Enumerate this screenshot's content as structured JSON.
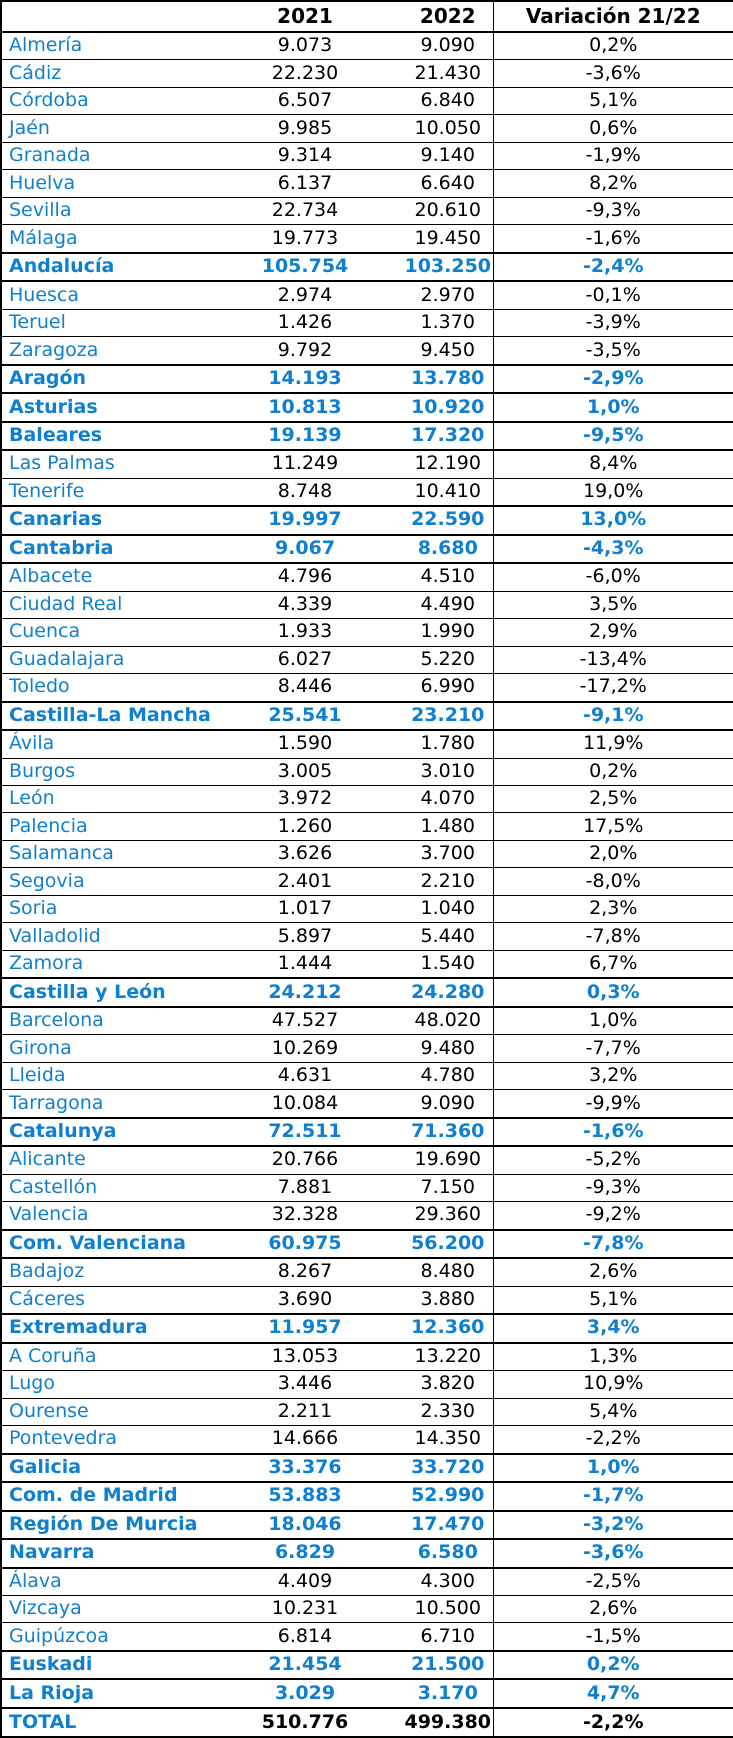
{
  "accent_color": "#0f7fd0",
  "border_color": "#000000",
  "header": {
    "name": "",
    "y2021": "2021",
    "y2022": "2022",
    "variation": "Variación 21/22"
  },
  "rows": [
    {
      "name": "Almería",
      "y2021": "9.073",
      "y2022": "9.090",
      "var": "0,2%",
      "type": "province"
    },
    {
      "name": "Cádiz",
      "y2021": "22.230",
      "y2022": "21.430",
      "var": "-3,6%",
      "type": "province"
    },
    {
      "name": "Córdoba",
      "y2021": "6.507",
      "y2022": "6.840",
      "var": "5,1%",
      "type": "province"
    },
    {
      "name": "Jaén",
      "y2021": "9.985",
      "y2022": "10.050",
      "var": "0,6%",
      "type": "province"
    },
    {
      "name": "Granada",
      "y2021": "9.314",
      "y2022": "9.140",
      "var": "-1,9%",
      "type": "province"
    },
    {
      "name": "Huelva",
      "y2021": "6.137",
      "y2022": "6.640",
      "var": "8,2%",
      "type": "province"
    },
    {
      "name": "Sevilla",
      "y2021": "22.734",
      "y2022": "20.610",
      "var": "-9,3%",
      "type": "province"
    },
    {
      "name": "Málaga",
      "y2021": "19.773",
      "y2022": "19.450",
      "var": "-1,6%",
      "type": "province"
    },
    {
      "name": "Andalucía",
      "y2021": "105.754",
      "y2022": "103.250",
      "var": "-2,4%",
      "type": "region"
    },
    {
      "name": "Huesca",
      "y2021": "2.974",
      "y2022": "2.970",
      "var": "-0,1%",
      "type": "province"
    },
    {
      "name": "Teruel",
      "y2021": "1.426",
      "y2022": "1.370",
      "var": "-3,9%",
      "type": "province"
    },
    {
      "name": "Zaragoza",
      "y2021": "9.792",
      "y2022": "9.450",
      "var": "-3,5%",
      "type": "province"
    },
    {
      "name": "Aragón",
      "y2021": "14.193",
      "y2022": "13.780",
      "var": "-2,9%",
      "type": "region"
    },
    {
      "name": "Asturias",
      "y2021": "10.813",
      "y2022": "10.920",
      "var": "1,0%",
      "type": "region"
    },
    {
      "name": "Baleares",
      "y2021": "19.139",
      "y2022": "17.320",
      "var": "-9,5%",
      "type": "region"
    },
    {
      "name": "Las Palmas",
      "y2021": "11.249",
      "y2022": "12.190",
      "var": "8,4%",
      "type": "province"
    },
    {
      "name": "Tenerife",
      "y2021": "8.748",
      "y2022": "10.410",
      "var": "19,0%",
      "type": "province"
    },
    {
      "name": "Canarias",
      "y2021": "19.997",
      "y2022": "22.590",
      "var": "13,0%",
      "type": "region"
    },
    {
      "name": "Cantabria",
      "y2021": "9.067",
      "y2022": "8.680",
      "var": "-4,3%",
      "type": "region"
    },
    {
      "name": "Albacete",
      "y2021": "4.796",
      "y2022": "4.510",
      "var": "-6,0%",
      "type": "province"
    },
    {
      "name": "Ciudad Real",
      "y2021": "4.339",
      "y2022": "4.490",
      "var": "3,5%",
      "type": "province"
    },
    {
      "name": "Cuenca",
      "y2021": "1.933",
      "y2022": "1.990",
      "var": "2,9%",
      "type": "province"
    },
    {
      "name": "Guadalajara",
      "y2021": "6.027",
      "y2022": "5.220",
      "var": "-13,4%",
      "type": "province"
    },
    {
      "name": "Toledo",
      "y2021": "8.446",
      "y2022": "6.990",
      "var": "-17,2%",
      "type": "province"
    },
    {
      "name": "Castilla-La Mancha",
      "y2021": "25.541",
      "y2022": "23.210",
      "var": "-9,1%",
      "type": "region"
    },
    {
      "name": "Ávila",
      "y2021": "1.590",
      "y2022": "1.780",
      "var": "11,9%",
      "type": "province"
    },
    {
      "name": "Burgos",
      "y2021": "3.005",
      "y2022": "3.010",
      "var": "0,2%",
      "type": "province"
    },
    {
      "name": "León",
      "y2021": "3.972",
      "y2022": "4.070",
      "var": "2,5%",
      "type": "province"
    },
    {
      "name": "Palencia",
      "y2021": "1.260",
      "y2022": "1.480",
      "var": "17,5%",
      "type": "province"
    },
    {
      "name": "Salamanca",
      "y2021": "3.626",
      "y2022": "3.700",
      "var": "2,0%",
      "type": "province"
    },
    {
      "name": "Segovia",
      "y2021": "2.401",
      "y2022": "2.210",
      "var": "-8,0%",
      "type": "province"
    },
    {
      "name": "Soria",
      "y2021": "1.017",
      "y2022": "1.040",
      "var": "2,3%",
      "type": "province"
    },
    {
      "name": "Valladolid",
      "y2021": "5.897",
      "y2022": "5.440",
      "var": "-7,8%",
      "type": "province"
    },
    {
      "name": "Zamora",
      "y2021": "1.444",
      "y2022": "1.540",
      "var": "6,7%",
      "type": "province"
    },
    {
      "name": "Castilla y León",
      "y2021": "24.212",
      "y2022": "24.280",
      "var": "0,3%",
      "type": "region"
    },
    {
      "name": "Barcelona",
      "y2021": "47.527",
      "y2022": "48.020",
      "var": "1,0%",
      "type": "province"
    },
    {
      "name": "Girona",
      "y2021": "10.269",
      "y2022": "9.480",
      "var": "-7,7%",
      "type": "province"
    },
    {
      "name": "Lleida",
      "y2021": "4.631",
      "y2022": "4.780",
      "var": "3,2%",
      "type": "province"
    },
    {
      "name": "Tarragona",
      "y2021": "10.084",
      "y2022": "9.090",
      "var": "-9,9%",
      "type": "province"
    },
    {
      "name": "Catalunya",
      "y2021": "72.511",
      "y2022": "71.360",
      "var": "-1,6%",
      "type": "region"
    },
    {
      "name": "Alicante",
      "y2021": "20.766",
      "y2022": "19.690",
      "var": "-5,2%",
      "type": "province"
    },
    {
      "name": "Castellón",
      "y2021": "7.881",
      "y2022": "7.150",
      "var": "-9,3%",
      "type": "province"
    },
    {
      "name": "Valencia",
      "y2021": "32.328",
      "y2022": "29.360",
      "var": "-9,2%",
      "type": "province"
    },
    {
      "name": "Com. Valenciana",
      "y2021": "60.975",
      "y2022": "56.200",
      "var": "-7,8%",
      "type": "region"
    },
    {
      "name": "Badajoz",
      "y2021": "8.267",
      "y2022": "8.480",
      "var": "2,6%",
      "type": "province"
    },
    {
      "name": "Cáceres",
      "y2021": "3.690",
      "y2022": "3.880",
      "var": "5,1%",
      "type": "province"
    },
    {
      "name": "Extremadura",
      "y2021": "11.957",
      "y2022": "12.360",
      "var": "3,4%",
      "type": "region"
    },
    {
      "name": "A Coruña",
      "y2021": "13.053",
      "y2022": "13.220",
      "var": "1,3%",
      "type": "province"
    },
    {
      "name": "Lugo",
      "y2021": "3.446",
      "y2022": "3.820",
      "var": "10,9%",
      "type": "province"
    },
    {
      "name": "Ourense",
      "y2021": "2.211",
      "y2022": "2.330",
      "var": "5,4%",
      "type": "province"
    },
    {
      "name": "Pontevedra",
      "y2021": "14.666",
      "y2022": "14.350",
      "var": "-2,2%",
      "type": "province"
    },
    {
      "name": "Galicia",
      "y2021": "33.376",
      "y2022": "33.720",
      "var": "1,0%",
      "type": "region"
    },
    {
      "name": "Com. de Madrid",
      "y2021": "53.883",
      "y2022": "52.990",
      "var": "-1,7%",
      "type": "region"
    },
    {
      "name": "Región De Murcia",
      "y2021": "18.046",
      "y2022": "17.470",
      "var": "-3,2%",
      "type": "region"
    },
    {
      "name": "Navarra",
      "y2021": "6.829",
      "y2022": "6.580",
      "var": "-3,6%",
      "type": "region"
    },
    {
      "name": "Álava",
      "y2021": "4.409",
      "y2022": "4.300",
      "var": "-2,5%",
      "type": "province"
    },
    {
      "name": "Vizcaya",
      "y2021": "10.231",
      "y2022": "10.500",
      "var": "2,6%",
      "type": "province"
    },
    {
      "name": "Guipúzcoa",
      "y2021": "6.814",
      "y2022": "6.710",
      "var": "-1,5%",
      "type": "province"
    },
    {
      "name": "Euskadi",
      "y2021": "21.454",
      "y2022": "21.500",
      "var": "0,2%",
      "type": "region"
    },
    {
      "name": "La Rioja",
      "y2021": "3.029",
      "y2022": "3.170",
      "var": "4,7%",
      "type": "region"
    },
    {
      "name": "TOTAL",
      "y2021": "510.776",
      "y2022": "499.380",
      "var": "-2,2%",
      "type": "total"
    }
  ],
  "chart_data": {
    "type": "table",
    "title": "",
    "columns": [
      "",
      "2021",
      "2022",
      "Variación 21/22"
    ],
    "row_kinds_legend": {
      "province": "plain blue label, black values",
      "region": "bold blue summary row",
      "total": "bold total row, blue label, black values"
    },
    "rows": [
      [
        "Almería",
        9073,
        9090,
        "0,2%"
      ],
      [
        "Cádiz",
        22230,
        21430,
        "-3,6%"
      ],
      [
        "Córdoba",
        6507,
        6840,
        "5,1%"
      ],
      [
        "Jaén",
        9985,
        10050,
        "0,6%"
      ],
      [
        "Granada",
        9314,
        9140,
        "-1,9%"
      ],
      [
        "Huelva",
        6137,
        6640,
        "8,2%"
      ],
      [
        "Sevilla",
        22734,
        20610,
        "-9,3%"
      ],
      [
        "Málaga",
        19773,
        19450,
        "-1,6%"
      ],
      [
        "Andalucía",
        105754,
        103250,
        "-2,4%"
      ],
      [
        "Huesca",
        2974,
        2970,
        "-0,1%"
      ],
      [
        "Teruel",
        1426,
        1370,
        "-3,9%"
      ],
      [
        "Zaragoza",
        9792,
        9450,
        "-3,5%"
      ],
      [
        "Aragón",
        14193,
        13780,
        "-2,9%"
      ],
      [
        "Asturias",
        10813,
        10920,
        "1,0%"
      ],
      [
        "Baleares",
        19139,
        17320,
        "-9,5%"
      ],
      [
        "Las Palmas",
        11249,
        12190,
        "8,4%"
      ],
      [
        "Tenerife",
        8748,
        10410,
        "19,0%"
      ],
      [
        "Canarias",
        19997,
        22590,
        "13,0%"
      ],
      [
        "Cantabria",
        9067,
        8680,
        "-4,3%"
      ],
      [
        "Albacete",
        4796,
        4510,
        "-6,0%"
      ],
      [
        "Ciudad Real",
        4339,
        4490,
        "3,5%"
      ],
      [
        "Cuenca",
        1933,
        1990,
        "2,9%"
      ],
      [
        "Guadalajara",
        6027,
        5220,
        "-13,4%"
      ],
      [
        "Toledo",
        8446,
        6990,
        "-17,2%"
      ],
      [
        "Castilla-La Mancha",
        25541,
        23210,
        "-9,1%"
      ],
      [
        "Ávila",
        1590,
        1780,
        "11,9%"
      ],
      [
        "Burgos",
        3005,
        3010,
        "0,2%"
      ],
      [
        "León",
        3972,
        4070,
        "2,5%"
      ],
      [
        "Palencia",
        1260,
        1480,
        "17,5%"
      ],
      [
        "Salamanca",
        3626,
        3700,
        "2,0%"
      ],
      [
        "Segovia",
        2401,
        2210,
        "-8,0%"
      ],
      [
        "Soria",
        1017,
        1040,
        "2,3%"
      ],
      [
        "Valladolid",
        5897,
        5440,
        "-7,8%"
      ],
      [
        "Zamora",
        1444,
        1540,
        "6,7%"
      ],
      [
        "Castilla y León",
        24212,
        24280,
        "0,3%"
      ],
      [
        "Barcelona",
        47527,
        48020,
        "1,0%"
      ],
      [
        "Girona",
        10269,
        9480,
        "-7,7%"
      ],
      [
        "Lleida",
        4631,
        4780,
        "3,2%"
      ],
      [
        "Tarragona",
        10084,
        9090,
        "-9,9%"
      ],
      [
        "Catalunya",
        72511,
        71360,
        "-1,6%"
      ],
      [
        "Alicante",
        20766,
        19690,
        "-5,2%"
      ],
      [
        "Castellón",
        7881,
        7150,
        "-9,3%"
      ],
      [
        "Valencia",
        32328,
        29360,
        "-9,2%"
      ],
      [
        "Com. Valenciana",
        60975,
        56200,
        "-7,8%"
      ],
      [
        "Badajoz",
        8267,
        8480,
        "2,6%"
      ],
      [
        "Cáceres",
        3690,
        3880,
        "5,1%"
      ],
      [
        "Extremadura",
        11957,
        12360,
        "3,4%"
      ],
      [
        "A Coruña",
        13053,
        13220,
        "1,3%"
      ],
      [
        "Lugo",
        3446,
        3820,
        "10,9%"
      ],
      [
        "Ourense",
        2211,
        2330,
        "5,4%"
      ],
      [
        "Pontevedra",
        14666,
        14350,
        "-2,2%"
      ],
      [
        "Galicia",
        33376,
        33720,
        "1,0%"
      ],
      [
        "Com. de Madrid",
        53883,
        52990,
        "-1,7%"
      ],
      [
        "Región De Murcia",
        18046,
        17470,
        "-3,2%"
      ],
      [
        "Navarra",
        6829,
        6580,
        "-3,6%"
      ],
      [
        "Álava",
        4409,
        4300,
        "-2,5%"
      ],
      [
        "Vizcaya",
        10231,
        10500,
        "2,6%"
      ],
      [
        "Guipúzcoa",
        6814,
        6710,
        "-1,5%"
      ],
      [
        "Euskadi",
        21454,
        21500,
        "0,2%"
      ],
      [
        "La Rioja",
        3029,
        3170,
        "4,7%"
      ],
      [
        "TOTAL",
        510776,
        499380,
        "-2,2%"
      ]
    ]
  }
}
